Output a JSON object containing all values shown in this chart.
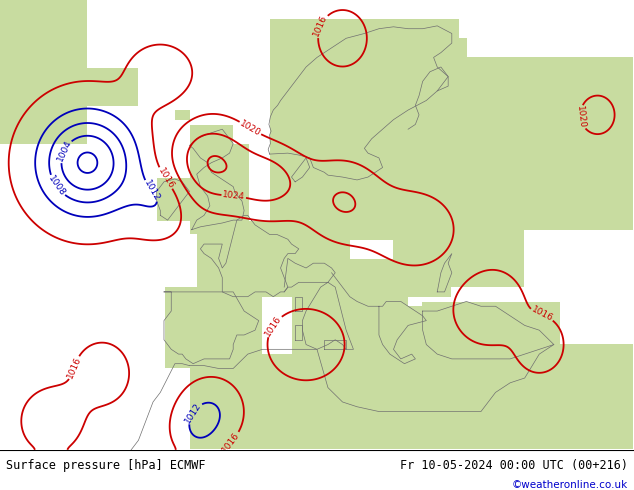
{
  "title_left": "Surface pressure [hPa] ECMWF",
  "title_right": "Fr 10-05-2024 00:00 UTC (00+216)",
  "watermark": "©weatheronline.co.uk",
  "ocean_color": "#c8d4dc",
  "land_color": "#c8dca0",
  "land_dark_color": "#a0b870",
  "coast_color": "#707070",
  "contour_low_color": "#0000bb",
  "contour_high_color": "#cc0000",
  "contour_mid_color": "#000000",
  "label_fontsize": 6.5,
  "footer_fontsize": 8.5,
  "fig_width": 6.34,
  "fig_height": 4.9,
  "dpi": 100,
  "lon_min": -32,
  "lon_max": 55,
  "lat_min": 27,
  "lat_max": 74
}
